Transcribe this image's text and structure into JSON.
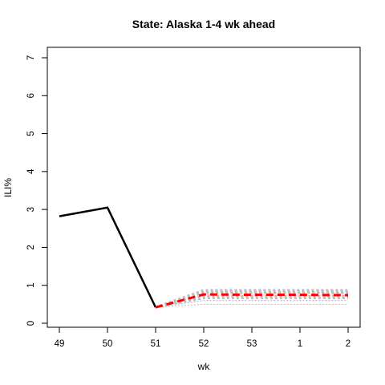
{
  "chart_data": {
    "type": "line",
    "title": "State: Alaska 1-4 wk ahead",
    "xlabel": "wk",
    "ylabel": "ILI%",
    "categories": [
      "49",
      "50",
      "51",
      "52",
      "53",
      "1",
      "2"
    ],
    "ylim": [
      0,
      7
    ],
    "yticks": [
      "0",
      "1",
      "2",
      "3",
      "4",
      "5",
      "6",
      "7"
    ],
    "grid": false,
    "legend": "none",
    "observed": {
      "color": "#000000",
      "points": [
        [
          0,
          2.82
        ],
        [
          1,
          3.05
        ],
        [
          2,
          0.42
        ]
      ]
    },
    "forecast_median": {
      "color": "#ff0000",
      "points": [
        [
          2,
          0.42
        ],
        [
          3,
          0.76
        ],
        [
          4,
          0.75
        ],
        [
          5,
          0.75
        ],
        [
          6,
          0.74
        ]
      ]
    },
    "forecast_bands": {
      "color": "#bebebe",
      "series": [
        {
          "values": [
            0.42,
            0.87,
            0.87,
            0.87,
            0.87
          ]
        },
        {
          "values": [
            0.42,
            0.84,
            0.83,
            0.83,
            0.83
          ]
        },
        {
          "values": [
            0.42,
            0.8,
            0.8,
            0.8,
            0.8
          ]
        },
        {
          "values": [
            0.42,
            0.72,
            0.71,
            0.71,
            0.71
          ]
        },
        {
          "values": [
            0.42,
            0.66,
            0.66,
            0.66,
            0.66
          ]
        },
        {
          "values": [
            0.42,
            0.6,
            0.6,
            0.6,
            0.6
          ]
        },
        {
          "values": [
            0.42,
            0.5,
            0.5,
            0.5,
            0.5
          ]
        }
      ]
    }
  }
}
